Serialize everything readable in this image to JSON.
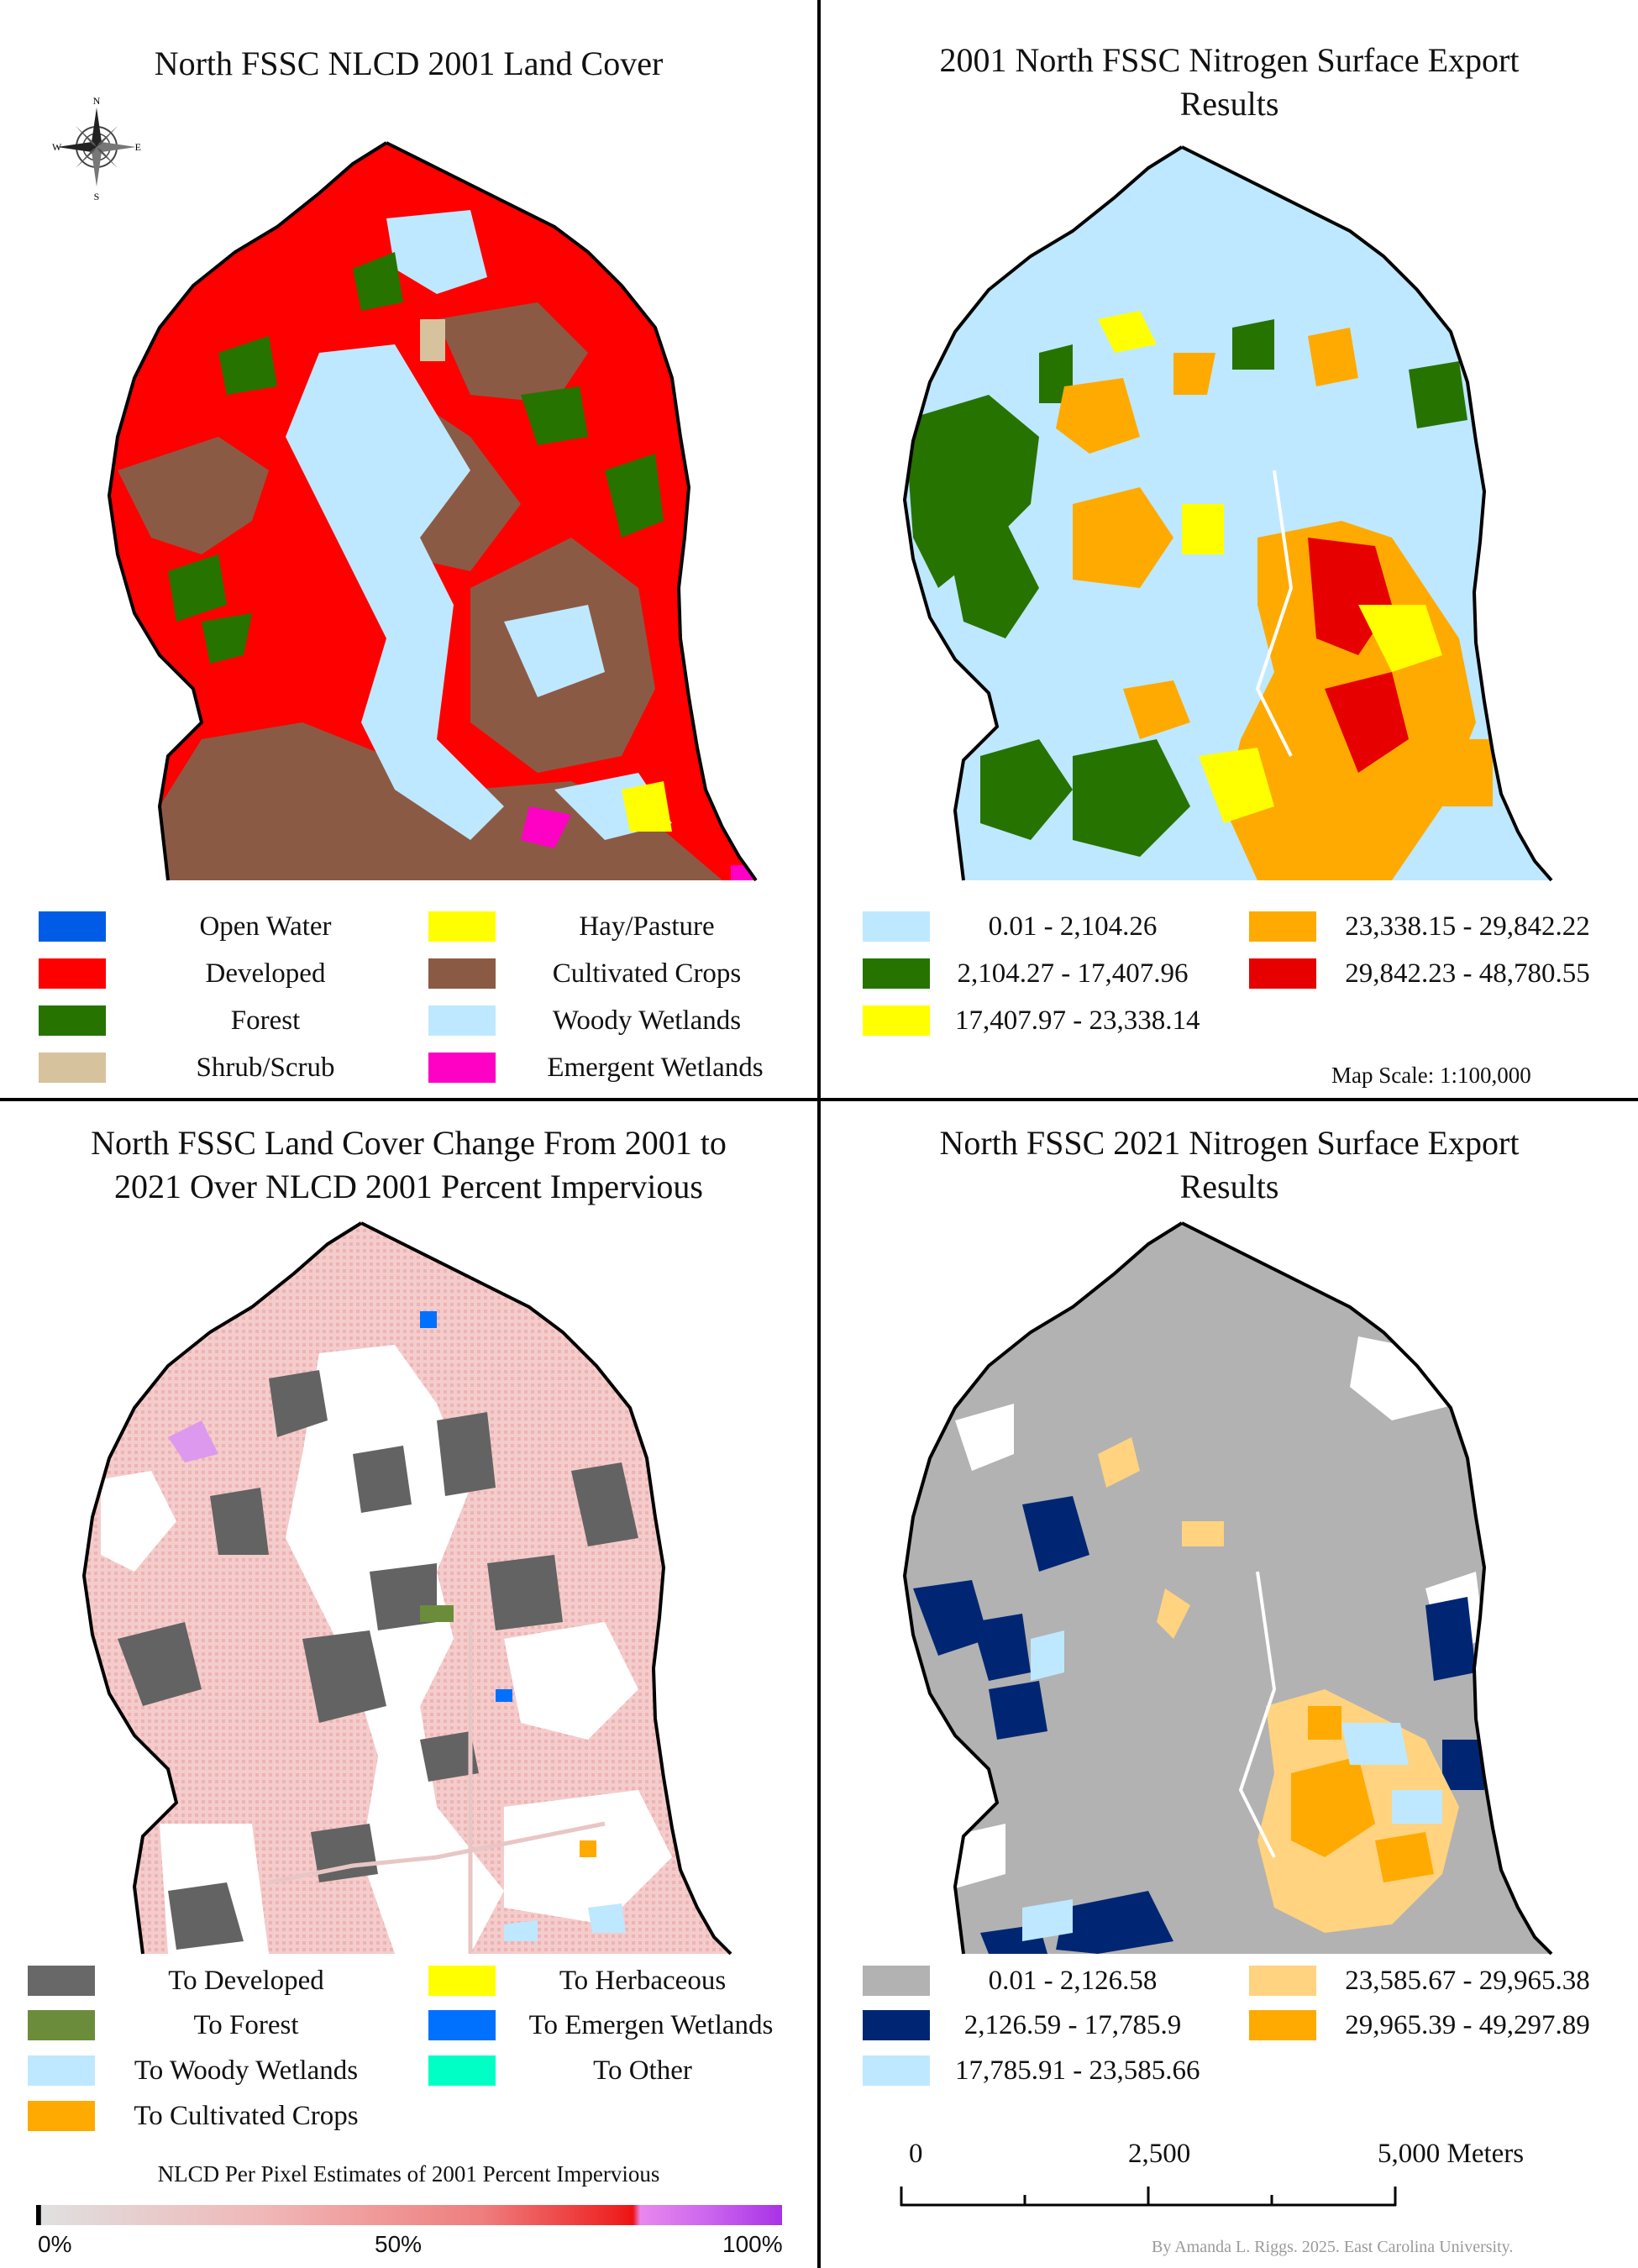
{
  "panels": {
    "top_left": {
      "title": "North FSSC NLCD 2001 Land Cover",
      "compass": {
        "n": "N",
        "s": "S",
        "e": "E",
        "w": "W"
      },
      "legend": [
        {
          "label": "Open Water",
          "color": "#005ce6"
        },
        {
          "label": "Developed",
          "color": "#ff0000"
        },
        {
          "label": "Forest",
          "color": "#267300"
        },
        {
          "label": "Shrub/Scrub",
          "color": "#d7c29e"
        },
        {
          "label": "Hay/Pasture",
          "color": "#ffff00"
        },
        {
          "label": "Cultivated Crops",
          "color": "#8b5a45"
        },
        {
          "label": "Woody Wetlands",
          "color": "#bee8ff"
        },
        {
          "label": "Emergent Wetlands",
          "color": "#ff00c5"
        }
      ]
    },
    "top_right": {
      "title_line1": "2001 North FSSC Nitrogen Surface Export",
      "title_line2": "Results",
      "legend": [
        {
          "label": "0.01 - 2,104.26",
          "color": "#bee8ff"
        },
        {
          "label": "2,104.27 - 17,407.96",
          "color": "#267300"
        },
        {
          "label": "17,407.97 - 23,338.14",
          "color": "#ffff00"
        },
        {
          "label": "23,338.15 - 29,842.22",
          "color": "#ffaa00"
        },
        {
          "label": "29,842.23 - 48,780.55",
          "color": "#e60000"
        }
      ],
      "map_scale": "Map Scale: 1:100,000"
    },
    "bottom_left": {
      "title_line1": "North FSSC Land Cover Change From 2001 to",
      "title_line2": "2021 Over NLCD 2001 Percent Impervious",
      "legend": [
        {
          "label": "To Developed",
          "color": "#686868"
        },
        {
          "label": "To Forest",
          "color": "#6b8c3a"
        },
        {
          "label": "To Woody Wetlands",
          "color": "#bee8ff"
        },
        {
          "label": "To Cultivated Crops",
          "color": "#ffaa00"
        },
        {
          "label": "To Herbaceous",
          "color": "#ffff00"
        },
        {
          "label": "To Emergen Wetlands",
          "color": "#0070ff"
        },
        {
          "label": "To Other",
          "color": "#00ffc5"
        }
      ],
      "ramp_title": "NLCD Per Pixel Estimates of 2001 Percent Impervious",
      "ramp_min": "0%",
      "ramp_mid": "50%",
      "ramp_max": "100%"
    },
    "bottom_right": {
      "title_line1": "North FSSC 2021 Nitrogen Surface Export",
      "title_line2": "Results",
      "legend": [
        {
          "label": "0.01 - 2,126.58",
          "color": "#b2b2b2"
        },
        {
          "label": "2,126.59 - 17,785.9",
          "color": "#002673"
        },
        {
          "label": "17,785.91 - 23,585.66",
          "color": "#bee8ff"
        },
        {
          "label": "23,585.67 - 29,965.38",
          "color": "#ffd37f"
        },
        {
          "label": "29,965.39 - 49,297.89",
          "color": "#ffaa00"
        }
      ],
      "scalebar": {
        "tick0": "0",
        "tick_mid": "2,500",
        "tick_end": "5,000 Meters"
      },
      "credit": "By Amanda L. Riggs. 2025. East Carolina University."
    }
  }
}
